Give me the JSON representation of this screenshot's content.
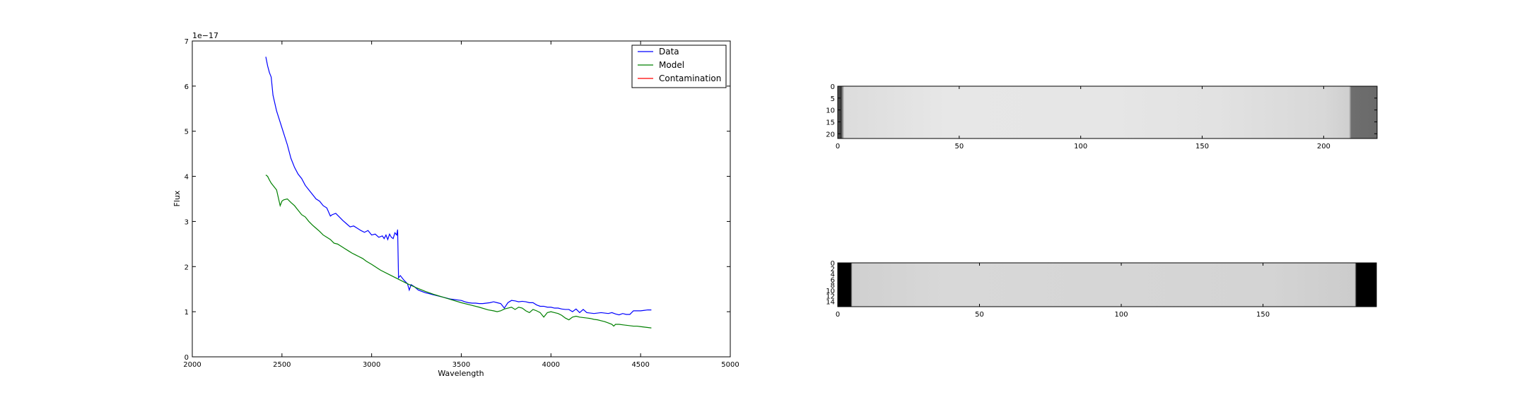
{
  "chart_data": [
    {
      "type": "line",
      "title": "",
      "xlabel": "Wavelength",
      "ylabel": "Flux",
      "offset_label": "1e−17",
      "xlim": [
        2000,
        5000
      ],
      "ylim": [
        0,
        7
      ],
      "x_ticks": [
        2000,
        2500,
        3000,
        3500,
        4000,
        4500,
        5000
      ],
      "y_ticks": [
        0,
        1,
        2,
        3,
        4,
        5,
        6,
        7
      ],
      "legend_placement": "top-right",
      "grid": false,
      "series": [
        {
          "name": "Data",
          "color": "#0000ff",
          "x": [
            2410,
            2420,
            2430,
            2440,
            2450,
            2470,
            2490,
            2510,
            2530,
            2550,
            2570,
            2590,
            2610,
            2630,
            2650,
            2670,
            2690,
            2710,
            2730,
            2750,
            2770,
            2780,
            2800,
            2820,
            2840,
            2860,
            2880,
            2900,
            2920,
            2940,
            2960,
            2980,
            3000,
            3020,
            3040,
            3060,
            3070,
            3080,
            3090,
            3100,
            3110,
            3120,
            3130,
            3140,
            3145,
            3150,
            3160,
            3180,
            3200,
            3210,
            3220,
            3240,
            3260,
            3280,
            3300,
            3320,
            3340,
            3360,
            3380,
            3400,
            3420,
            3440,
            3460,
            3480,
            3500,
            3520,
            3540,
            3560,
            3580,
            3600,
            3620,
            3640,
            3660,
            3680,
            3700,
            3720,
            3740,
            3760,
            3780,
            3800,
            3820,
            3840,
            3860,
            3880,
            3900,
            3920,
            3940,
            3960,
            3980,
            4000,
            4020,
            4040,
            4060,
            4080,
            4100,
            4120,
            4140,
            4160,
            4180,
            4200,
            4220,
            4240,
            4260,
            4280,
            4300,
            4320,
            4340,
            4360,
            4380,
            4400,
            4420,
            4440,
            4460,
            4480,
            4500,
            4520,
            4540,
            4560
          ],
          "y": [
            6.65,
            6.45,
            6.3,
            6.2,
            5.8,
            5.45,
            5.2,
            4.95,
            4.7,
            4.4,
            4.2,
            4.05,
            3.95,
            3.8,
            3.7,
            3.6,
            3.5,
            3.45,
            3.35,
            3.3,
            3.12,
            3.15,
            3.18,
            3.1,
            3.02,
            2.95,
            2.88,
            2.9,
            2.85,
            2.8,
            2.76,
            2.8,
            2.7,
            2.72,
            2.65,
            2.68,
            2.62,
            2.7,
            2.6,
            2.72,
            2.65,
            2.62,
            2.75,
            2.7,
            2.82,
            1.75,
            1.8,
            1.7,
            1.62,
            1.48,
            1.6,
            1.55,
            1.48,
            1.45,
            1.42,
            1.4,
            1.38,
            1.36,
            1.34,
            1.32,
            1.3,
            1.28,
            1.27,
            1.26,
            1.25,
            1.22,
            1.2,
            1.19,
            1.19,
            1.18,
            1.18,
            1.19,
            1.2,
            1.22,
            1.2,
            1.18,
            1.08,
            1.2,
            1.25,
            1.24,
            1.22,
            1.23,
            1.22,
            1.2,
            1.2,
            1.15,
            1.12,
            1.12,
            1.1,
            1.1,
            1.08,
            1.08,
            1.06,
            1.05,
            1.05,
            1.0,
            1.06,
            0.98,
            1.05,
            0.98,
            0.97,
            0.96,
            0.97,
            0.98,
            0.97,
            0.96,
            0.98,
            0.95,
            0.93,
            0.96,
            0.94,
            0.94,
            1.02,
            1.02,
            1.02,
            1.03,
            1.04,
            1.04
          ]
        },
        {
          "name": "Model",
          "color": "#008000",
          "x": [
            2410,
            2420,
            2430,
            2440,
            2450,
            2470,
            2490,
            2500,
            2510,
            2530,
            2550,
            2570,
            2590,
            2610,
            2630,
            2650,
            2670,
            2690,
            2710,
            2730,
            2750,
            2770,
            2790,
            2810,
            2830,
            2850,
            2870,
            2890,
            2910,
            2930,
            2950,
            2970,
            3000,
            3050,
            3100,
            3150,
            3200,
            3250,
            3300,
            3350,
            3400,
            3450,
            3500,
            3550,
            3600,
            3650,
            3680,
            3700,
            3720,
            3740,
            3760,
            3780,
            3800,
            3820,
            3840,
            3860,
            3880,
            3900,
            3920,
            3940,
            3960,
            3980,
            4000,
            4020,
            4040,
            4060,
            4080,
            4100,
            4120,
            4140,
            4160,
            4180,
            4200,
            4220,
            4240,
            4260,
            4280,
            4300,
            4320,
            4340,
            4350,
            4360,
            4380,
            4400,
            4420,
            4440,
            4460,
            4480,
            4500,
            4520,
            4540,
            4560
          ],
          "y": [
            4.03,
            4.0,
            3.92,
            3.85,
            3.8,
            3.7,
            3.35,
            3.45,
            3.48,
            3.5,
            3.42,
            3.35,
            3.25,
            3.15,
            3.1,
            3.0,
            2.92,
            2.85,
            2.78,
            2.7,
            2.65,
            2.6,
            2.52,
            2.5,
            2.45,
            2.4,
            2.35,
            2.3,
            2.26,
            2.22,
            2.18,
            2.12,
            2.05,
            1.92,
            1.82,
            1.72,
            1.62,
            1.53,
            1.45,
            1.38,
            1.32,
            1.26,
            1.2,
            1.15,
            1.1,
            1.04,
            1.02,
            1.0,
            1.02,
            1.06,
            1.08,
            1.1,
            1.05,
            1.1,
            1.08,
            1.02,
            0.98,
            1.05,
            1.02,
            0.98,
            0.88,
            0.98,
            1.0,
            0.98,
            0.96,
            0.92,
            0.86,
            0.82,
            0.88,
            0.9,
            0.88,
            0.87,
            0.86,
            0.85,
            0.83,
            0.82,
            0.8,
            0.78,
            0.75,
            0.72,
            0.68,
            0.72,
            0.72,
            0.71,
            0.7,
            0.69,
            0.68,
            0.68,
            0.67,
            0.66,
            0.65,
            0.64
          ]
        },
        {
          "name": "Contamination",
          "color": "#ff0000",
          "x": [],
          "y": []
        }
      ]
    },
    {
      "type": "heatmap",
      "title": "",
      "cmap": "gray",
      "x_ticks": [
        0,
        50,
        100,
        150,
        200
      ],
      "y_ticks": [
        0,
        5,
        10,
        15,
        20
      ],
      "xlim": [
        0,
        222
      ],
      "ylim": [
        22,
        0
      ]
    },
    {
      "type": "heatmap",
      "title": "",
      "cmap": "gray",
      "x_ticks": [
        0,
        50,
        100,
        150
      ],
      "y_ticks": [
        0,
        2,
        4,
        6,
        8,
        10,
        12,
        14
      ],
      "xlim": [
        0,
        190
      ],
      "ylim": [
        16,
        0
      ]
    }
  ]
}
